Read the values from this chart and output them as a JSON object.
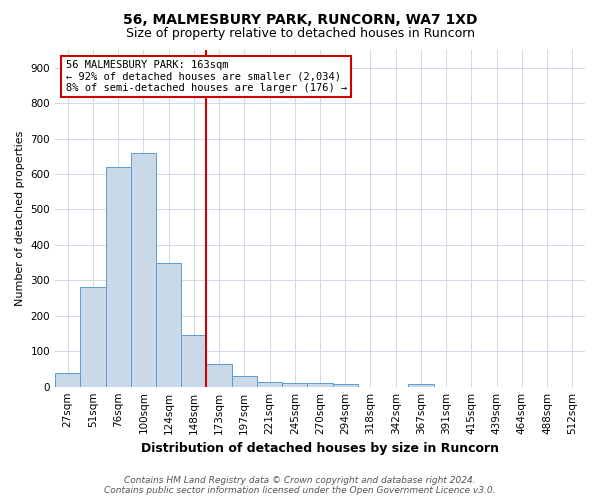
{
  "title1": "56, MALMESBURY PARK, RUNCORN, WA7 1XD",
  "title2": "Size of property relative to detached houses in Runcorn",
  "xlabel": "Distribution of detached houses by size in Runcorn",
  "ylabel": "Number of detached properties",
  "footer": "Contains HM Land Registry data © Crown copyright and database right 2024.\nContains public sector information licensed under the Open Government Licence v3.0.",
  "categories": [
    "27sqm",
    "51sqm",
    "76sqm",
    "100sqm",
    "124sqm",
    "148sqm",
    "173sqm",
    "197sqm",
    "221sqm",
    "245sqm",
    "270sqm",
    "294sqm",
    "318sqm",
    "342sqm",
    "367sqm",
    "391sqm",
    "415sqm",
    "439sqm",
    "464sqm",
    "488sqm",
    "512sqm"
  ],
  "values": [
    40,
    280,
    620,
    660,
    350,
    145,
    65,
    30,
    12,
    10,
    10,
    8,
    0,
    0,
    8,
    0,
    0,
    0,
    0,
    0,
    0
  ],
  "bar_color": "#c9d9e8",
  "bar_edge_color": "#5b9bd5",
  "highlight_bin_index": 6,
  "highlight_color": "#cc0000",
  "annotation_text_line1": "56 MALMESBURY PARK: 163sqm",
  "annotation_text_line2": "← 92% of detached houses are smaller (2,034)",
  "annotation_text_line3": "8% of semi-detached houses are larger (176) →",
  "annotation_box_color": "#ffffff",
  "annotation_box_edge": "#cc0000",
  "ylim": [
    0,
    950
  ],
  "yticks": [
    0,
    100,
    200,
    300,
    400,
    500,
    600,
    700,
    800,
    900
  ],
  "bg_color": "#ffffff",
  "grid_color": "#d0d8e8",
  "title1_fontsize": 10,
  "title2_fontsize": 9,
  "xlabel_fontsize": 9,
  "ylabel_fontsize": 8,
  "tick_fontsize": 7.5,
  "footer_fontsize": 6.5
}
